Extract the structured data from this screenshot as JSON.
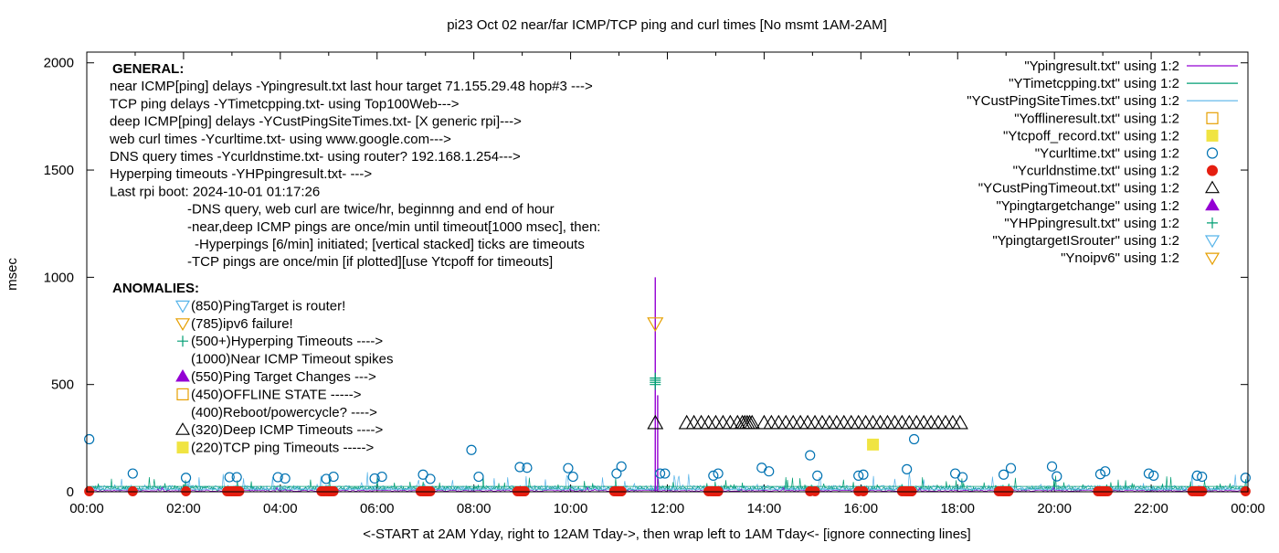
{
  "chart_data": {
    "type": "line",
    "title": "pi23 Oct 02  near/far ICMP/TCP ping and curl times [No msmt 1AM-2AM]",
    "xlabel": "<-START at 2AM Yday, right to 12AM Tday->, then wrap left to 1AM Tday<- [ignore connecting lines]",
    "ylabel": "msec",
    "xlim": [
      0,
      24
    ],
    "ylim": [
      0,
      2050
    ],
    "x_ticks": [
      {
        "value": 0,
        "label": "00:00"
      },
      {
        "value": 2,
        "label": "02:00"
      },
      {
        "value": 4,
        "label": "04:00"
      },
      {
        "value": 6,
        "label": "06:00"
      },
      {
        "value": 8,
        "label": "08:00"
      },
      {
        "value": 10,
        "label": "10:00"
      },
      {
        "value": 12,
        "label": "12:00"
      },
      {
        "value": 14,
        "label": "14:00"
      },
      {
        "value": 16,
        "label": "16:00"
      },
      {
        "value": 18,
        "label": "18:00"
      },
      {
        "value": 20,
        "label": "20:00"
      },
      {
        "value": 22,
        "label": "22:00"
      },
      {
        "value": 24,
        "label": "00:00"
      }
    ],
    "y_ticks": [
      {
        "value": 0,
        "label": "0"
      },
      {
        "value": 500,
        "label": "500"
      },
      {
        "value": 1000,
        "label": "1000"
      },
      {
        "value": 1500,
        "label": "1500"
      },
      {
        "value": 2000,
        "label": "2000"
      }
    ],
    "legend_position": "top-right",
    "legend": [
      {
        "label": "\"Ypingresult.txt\" using 1:2",
        "style": "line",
        "color": "#9400d3"
      },
      {
        "label": "\"YTimetcpping.txt\" using 1:2",
        "style": "line",
        "color": "#009e73"
      },
      {
        "label": "\"YCustPingSiteTimes.txt\" using 1:2",
        "style": "line",
        "color": "#56b4e9"
      },
      {
        "label": "\"Yofflineresult.txt\" using 1:2",
        "style": "open-square",
        "color": "#e69f00"
      },
      {
        "label": "\"Ytcpoff_record.txt\" using 1:2",
        "style": "filled-square",
        "color": "#f0e442"
      },
      {
        "label": "\"Ycurltime.txt\" using 1:2",
        "style": "open-circle",
        "color": "#0072b2"
      },
      {
        "label": "\"Ycurldnstime.txt\" using 1:2",
        "style": "filled-circle",
        "color": "#e51e10"
      },
      {
        "label": "\"YCustPingTimeout.txt\" using 1:2",
        "style": "open-triangle",
        "color": "#000000"
      },
      {
        "label": "\"Ypingtargetchange\" using 1:2",
        "style": "filled-triangle",
        "color": "#9400d3"
      },
      {
        "label": "\"YHPpingresult.txt\" using 1:2",
        "style": "plus",
        "color": "#009e73"
      },
      {
        "label": "\"YpingtargetISrouter\" using 1:2",
        "style": "open-down-triangle",
        "color": "#56b4e9"
      },
      {
        "label": "\"Ynoipv6\" using 1:2",
        "style": "open-down-triangle",
        "color": "#e69f00"
      }
    ],
    "annotations_general": [
      {
        "text": "GENERAL:",
        "bold": true,
        "indent": 0
      },
      {
        "text": "near ICMP[ping] delays -Ypingresult.txt last hour target 71.155.29.48 hop#3 --->",
        "indent": 0
      },
      {
        "text": "TCP ping delays -YTimetcpping.txt- using Top100Web--->",
        "indent": 0
      },
      {
        "text": "deep ICMP[ping] delays -YCustPingSiteTimes.txt- [X generic rpi]--->",
        "indent": 0
      },
      {
        "text": "web curl times -Ycurltime.txt- using www.google.com--->",
        "indent": 0
      },
      {
        "text": "DNS query times -Ycurldnstime.txt- using router? 192.168.1.254--->",
        "indent": 0
      },
      {
        "text": "Hyperping timeouts -YHPpingresult.txt- --->",
        "indent": 0
      },
      {
        "text": "Last rpi boot: 2024-10-01 01:17:26",
        "indent": 0
      },
      {
        "text": "-DNS query, web curl are twice/hr, beginnng and end of hour",
        "indent": 1
      },
      {
        "text": "-near,deep ICMP pings are once/min until timeout[1000 msec], then:",
        "indent": 1
      },
      {
        "text": "-Hyperpings [6/min] initiated; [vertical stacked] ticks are timeouts",
        "indent": 2
      },
      {
        "text": "-TCP pings are once/min [if plotted][use Ytcpoff for timeouts]",
        "indent": 1
      }
    ],
    "annotations_anomalies": [
      {
        "text": "ANOMALIES:",
        "bold": true,
        "marker": "none"
      },
      {
        "text": "(850)PingTarget is router!",
        "marker": "open-down-triangle",
        "color": "#56b4e9"
      },
      {
        "text": "(785)ipv6 failure!",
        "marker": "open-down-triangle",
        "color": "#e69f00"
      },
      {
        "text": "(500+)Hyperping Timeouts ---->",
        "marker": "plus",
        "color": "#009e73"
      },
      {
        "text": "(1000)Near ICMP Timeout spikes",
        "marker": "none"
      },
      {
        "text": "(550)Ping Target Changes --->",
        "marker": "filled-triangle",
        "color": "#9400d3"
      },
      {
        "text": "(450)OFFLINE STATE ----->",
        "marker": "open-square",
        "color": "#e69f00"
      },
      {
        "text": "(400)Reboot/powercycle? ---->",
        "marker": "none"
      },
      {
        "text": "(320)Deep ICMP Timeouts ---->",
        "marker": "open-triangle",
        "color": "#000000"
      },
      {
        "text": "(220)TCP ping Timeouts ----->",
        "marker": "filled-square",
        "color": "#f0e442"
      }
    ],
    "series": [
      {
        "name": "\"Ycurltime.txt\" using 1:2",
        "style": "open-circle",
        "color": "#0072b2",
        "points": [
          [
            0.05,
            245
          ],
          [
            0.95,
            85
          ],
          [
            2.05,
            65
          ],
          [
            2.95,
            68
          ],
          [
            3.1,
            68
          ],
          [
            3.95,
            68
          ],
          [
            4.1,
            62
          ],
          [
            4.95,
            60
          ],
          [
            5.1,
            70
          ],
          [
            5.95,
            62
          ],
          [
            6.1,
            70
          ],
          [
            6.95,
            80
          ],
          [
            7.1,
            60
          ],
          [
            7.95,
            195
          ],
          [
            8.1,
            70
          ],
          [
            8.95,
            115
          ],
          [
            9.1,
            112
          ],
          [
            9.95,
            110
          ],
          [
            10.05,
            70
          ],
          [
            10.95,
            85
          ],
          [
            11.05,
            118
          ],
          [
            11.85,
            85
          ],
          [
            11.95,
            85
          ],
          [
            12.95,
            75
          ],
          [
            13.05,
            85
          ],
          [
            13.95,
            112
          ],
          [
            14.1,
            95
          ],
          [
            14.95,
            170
          ],
          [
            15.1,
            75
          ],
          [
            15.95,
            75
          ],
          [
            16.05,
            80
          ],
          [
            16.95,
            105
          ],
          [
            17.1,
            245
          ],
          [
            17.95,
            85
          ],
          [
            18.1,
            68
          ],
          [
            18.95,
            80
          ],
          [
            19.1,
            110
          ],
          [
            19.95,
            118
          ],
          [
            20.05,
            72
          ],
          [
            20.95,
            82
          ],
          [
            21.05,
            95
          ],
          [
            21.95,
            85
          ],
          [
            22.05,
            75
          ],
          [
            22.95,
            75
          ],
          [
            23.05,
            70
          ],
          [
            23.95,
            65
          ]
        ]
      },
      {
        "name": "\"YCustPingTimeout.txt\" using 1:2",
        "style": "open-triangle",
        "color": "#000000",
        "points": [
          [
            11.75,
            320
          ],
          [
            12.4,
            320
          ],
          [
            12.55,
            320
          ],
          [
            12.7,
            320
          ],
          [
            12.85,
            320
          ],
          [
            13.0,
            320
          ],
          [
            13.15,
            320
          ],
          [
            13.3,
            320
          ],
          [
            13.45,
            320
          ],
          [
            13.55,
            320
          ],
          [
            13.6,
            320
          ],
          [
            13.65,
            320
          ],
          [
            13.7,
            320
          ],
          [
            13.75,
            320
          ],
          [
            14.0,
            320
          ],
          [
            14.15,
            320
          ],
          [
            14.3,
            320
          ],
          [
            14.45,
            320
          ],
          [
            14.6,
            320
          ],
          [
            14.75,
            320
          ],
          [
            14.9,
            320
          ],
          [
            15.05,
            320
          ],
          [
            15.2,
            320
          ],
          [
            15.35,
            320
          ],
          [
            15.5,
            320
          ],
          [
            15.65,
            320
          ],
          [
            15.8,
            320
          ],
          [
            15.95,
            320
          ],
          [
            16.1,
            320
          ],
          [
            16.25,
            320
          ],
          [
            16.4,
            320
          ],
          [
            16.55,
            320
          ],
          [
            16.7,
            320
          ],
          [
            16.85,
            320
          ],
          [
            17.0,
            320
          ],
          [
            17.15,
            320
          ],
          [
            17.3,
            320
          ],
          [
            17.45,
            320
          ],
          [
            17.6,
            320
          ],
          [
            17.75,
            320
          ],
          [
            17.9,
            320
          ],
          [
            18.05,
            320
          ]
        ]
      },
      {
        "name": "\"Ytcpoff_record.txt\" using 1:2",
        "style": "filled-square",
        "color": "#f0e442",
        "points": [
          [
            16.25,
            220
          ]
        ]
      },
      {
        "name": "\"Ynoipv6\" using 1:2",
        "style": "open-down-triangle",
        "color": "#e69f00",
        "points": [
          [
            11.75,
            785
          ]
        ]
      },
      {
        "name": "\"YHPpingresult.txt\" using 1:2",
        "style": "plus",
        "color": "#009e73",
        "points": [
          [
            11.75,
            500
          ],
          [
            11.75,
            510
          ],
          [
            11.75,
            520
          ],
          [
            11.75,
            530
          ]
        ]
      },
      {
        "name": "\"Ypingresult.txt\" using 1:2",
        "style": "line",
        "color": "#9400d3",
        "spikes": [
          [
            11.75,
            1000
          ],
          [
            11.8,
            450
          ]
        ]
      }
    ]
  }
}
